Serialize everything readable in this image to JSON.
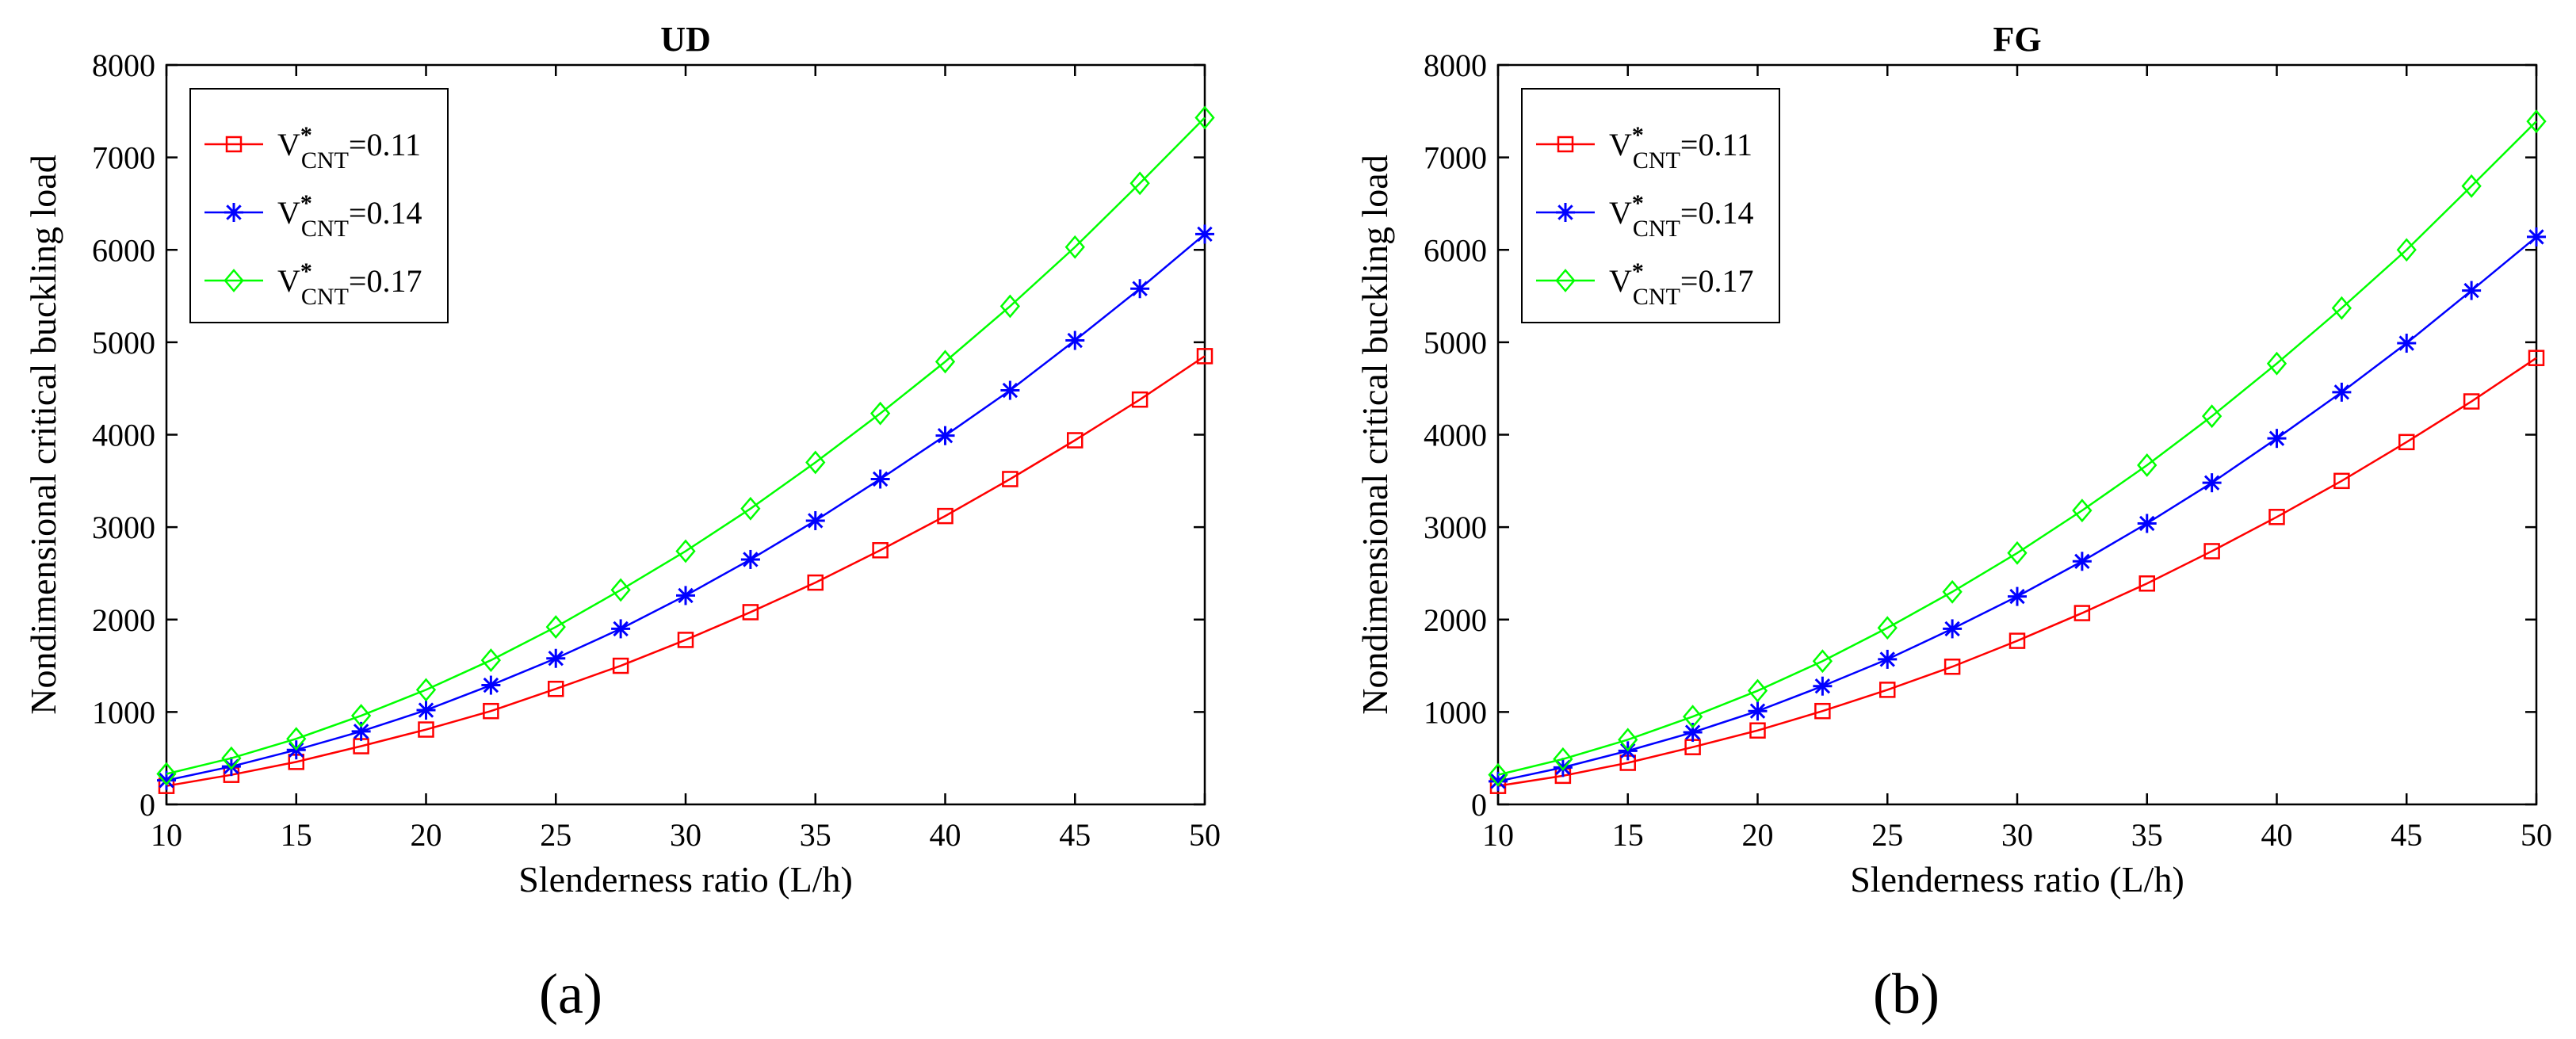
{
  "colors": {
    "red": "#ff0000",
    "blue": "#0000ff",
    "green": "#00ff00",
    "axis": "#000000"
  },
  "chart_data": [
    {
      "type": "line",
      "panel_label": "(a)",
      "title": "UD",
      "xlabel": "Slenderness ratio (L/h)",
      "ylabel": "Nondimensional critical buckling load",
      "xlim": [
        10,
        50
      ],
      "ylim": [
        0,
        8000
      ],
      "xticks": [
        10,
        15,
        20,
        25,
        30,
        35,
        40,
        45,
        50
      ],
      "yticks": [
        0,
        1000,
        2000,
        3000,
        4000,
        5000,
        6000,
        7000,
        8000
      ],
      "legend_position": "top-left",
      "x": [
        10,
        12.5,
        15,
        17.5,
        20,
        22.5,
        25,
        27.5,
        30,
        32.5,
        35,
        37.5,
        40,
        42.5,
        45,
        47.5,
        50
      ],
      "series": [
        {
          "name": "V*CNT=0.11",
          "sym": "V",
          "sup": "*",
          "sub": "CNT",
          "value": "=0.11",
          "color": "#ff0000",
          "marker": "square",
          "values": [
            200,
            320,
            460,
            630,
            810,
            1010,
            1250,
            1500,
            1780,
            2080,
            2400,
            2750,
            3120,
            3520,
            3940,
            4380,
            4850
          ]
        },
        {
          "name": "V*CNT=0.14",
          "sym": "V",
          "sup": "*",
          "sub": "CNT",
          "value": "=0.14",
          "color": "#0000ff",
          "marker": "asterisk",
          "values": [
            260,
            410,
            590,
            790,
            1020,
            1290,
            1580,
            1900,
            2260,
            2650,
            3070,
            3520,
            3990,
            4480,
            5020,
            5580,
            6170
          ]
        },
        {
          "name": "V*CNT=0.17",
          "sym": "V",
          "sup": "*",
          "sub": "CNT",
          "value": "=0.17",
          "color": "#00ff00",
          "marker": "diamond",
          "values": [
            330,
            500,
            710,
            960,
            1240,
            1560,
            1920,
            2320,
            2740,
            3200,
            3700,
            4230,
            4790,
            5390,
            6030,
            6720,
            7430
          ]
        }
      ]
    },
    {
      "type": "line",
      "panel_label": "(b)",
      "title": "FG",
      "xlabel": "Slenderness ratio (L/h)",
      "ylabel": "Nondimensional critical buckling load",
      "xlim": [
        10,
        50
      ],
      "ylim": [
        0,
        8000
      ],
      "xticks": [
        10,
        15,
        20,
        25,
        30,
        35,
        40,
        45,
        50
      ],
      "yticks": [
        0,
        1000,
        2000,
        3000,
        4000,
        5000,
        6000,
        7000,
        8000
      ],
      "legend_position": "top-left",
      "x": [
        10,
        12.5,
        15,
        17.5,
        20,
        22.5,
        25,
        27.5,
        30,
        32.5,
        35,
        37.5,
        40,
        42.5,
        45,
        47.5,
        50
      ],
      "series": [
        {
          "name": "V*CNT=0.11",
          "sym": "V",
          "sup": "*",
          "sub": "CNT",
          "value": "=0.11",
          "color": "#ff0000",
          "marker": "square",
          "values": [
            200,
            310,
            450,
            620,
            800,
            1010,
            1240,
            1490,
            1770,
            2070,
            2390,
            2740,
            3110,
            3500,
            3920,
            4360,
            4830
          ]
        },
        {
          "name": "V*CNT=0.14",
          "sym": "V",
          "sup": "*",
          "sub": "CNT",
          "value": "=0.14",
          "color": "#0000ff",
          "marker": "asterisk",
          "values": [
            250,
            400,
            580,
            780,
            1010,
            1280,
            1570,
            1900,
            2250,
            2630,
            3040,
            3480,
            3960,
            4460,
            4990,
            5560,
            6140
          ]
        },
        {
          "name": "V*CNT=0.17",
          "sym": "V",
          "sup": "*",
          "sub": "CNT",
          "value": "=0.17",
          "color": "#00ff00",
          "marker": "diamond",
          "values": [
            320,
            490,
            700,
            950,
            1230,
            1550,
            1910,
            2300,
            2720,
            3180,
            3670,
            4200,
            4770,
            5370,
            6000,
            6690,
            7390
          ]
        }
      ]
    }
  ]
}
